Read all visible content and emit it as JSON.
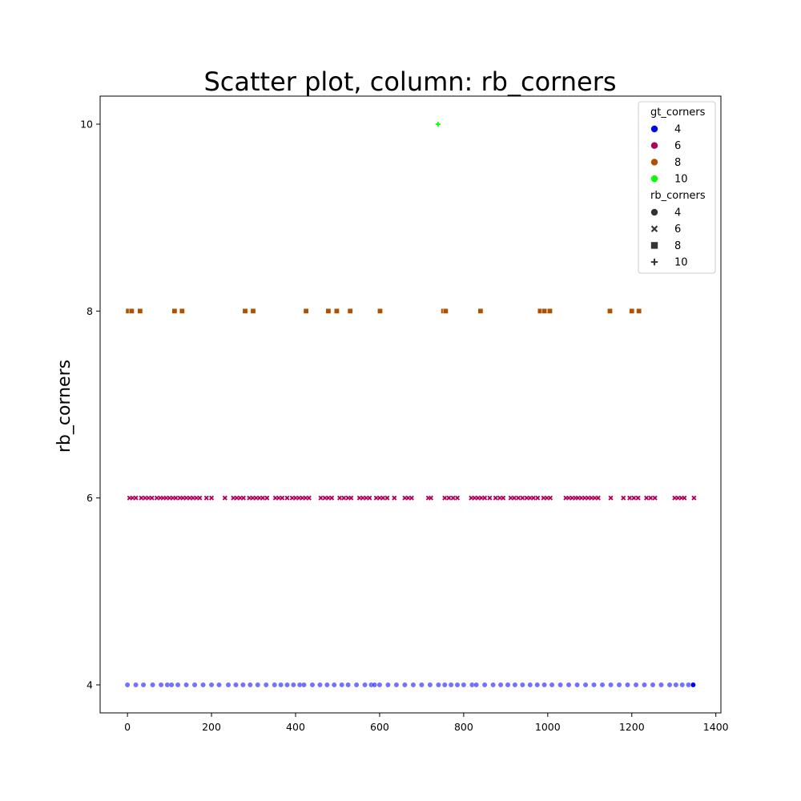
{
  "chart_data": {
    "type": "scatter",
    "title": "Scatter plot, column: rb_corners",
    "xlabel": "",
    "ylabel": "rb_corners",
    "xlim": [
      -65,
      1412
    ],
    "ylim": [
      3.7,
      10.3
    ],
    "xticks": [
      0,
      200,
      400,
      600,
      800,
      1000,
      1200,
      1400
    ],
    "yticks": [
      4,
      6,
      8,
      10
    ],
    "grid": false,
    "legend_position": "top-right",
    "legend": {
      "hue_title": "gt_corners",
      "hue_entries": [
        {
          "label": "4",
          "color": "#0000ff"
        },
        {
          "label": "6",
          "color": "#b0005a"
        },
        {
          "label": "8",
          "color": "#b05000"
        },
        {
          "label": "10",
          "color": "#00ff00"
        }
      ],
      "style_title": "rb_corners",
      "style_entries": [
        {
          "label": "4",
          "marker": "circle"
        },
        {
          "label": "6",
          "marker": "x"
        },
        {
          "label": "8",
          "marker": "square"
        },
        {
          "label": "10",
          "marker": "plus"
        }
      ]
    },
    "series": [
      {
        "gt": 8,
        "marker": "square",
        "color": "#b05000",
        "y": 8,
        "x": [
          2,
          10,
          30,
          112,
          130,
          280,
          299,
          425,
          478,
          498,
          530,
          601,
          752,
          757,
          840,
          982,
          992,
          1005,
          1148,
          1200,
          1217
        ]
      },
      {
        "gt": 10,
        "marker": "plus",
        "color": "#00ff00",
        "y": 10,
        "x": [
          739
        ]
      },
      {
        "gt": 6,
        "marker": "x",
        "color": "#b0005a",
        "y": 6,
        "x": [
          5,
          12,
          20,
          33,
          42,
          50,
          58,
          70,
          78,
          85,
          92,
          100,
          108,
          115,
          125,
          132,
          140,
          148,
          156,
          164,
          172,
          188,
          200,
          232,
          252,
          260,
          268,
          276,
          290,
          298,
          306,
          314,
          322,
          332,
          352,
          360,
          368,
          380,
          392,
          400,
          408,
          416,
          424,
          432,
          460,
          470,
          478,
          486,
          505,
          515,
          525,
          532,
          552,
          560,
          568,
          576,
          592,
          600,
          608,
          618,
          635,
          660,
          668,
          676,
          716,
          722,
          755,
          765,
          775,
          785,
          818,
          826,
          834,
          842,
          850,
          862,
          876,
          886,
          894,
          912,
          920,
          930,
          940,
          950,
          958,
          966,
          976,
          990,
          998,
          1006,
          1043,
          1050,
          1058,
          1066,
          1072,
          1080,
          1088,
          1096,
          1104,
          1112,
          1120,
          1150,
          1180,
          1195,
          1205,
          1215,
          1235,
          1245,
          1255,
          1302,
          1310,
          1318,
          1325,
          1348
        ]
      },
      {
        "gt": 4,
        "marker": "circle",
        "color": "#0000ff",
        "y": 4,
        "x": [
          0,
          20,
          38,
          60,
          80,
          95,
          105,
          120,
          140,
          160,
          180,
          200,
          218,
          240,
          258,
          275,
          292,
          310,
          330,
          350,
          365,
          380,
          395,
          410,
          420,
          440,
          458,
          475,
          492,
          510,
          525,
          545,
          565,
          580,
          588,
          600,
          620,
          640,
          660,
          680,
          700,
          720,
          740,
          755,
          770,
          785,
          800,
          820,
          830,
          850,
          870,
          888,
          905,
          922,
          940,
          958,
          975,
          992,
          1010,
          1030,
          1050,
          1070,
          1090,
          1110,
          1130,
          1150,
          1170,
          1190,
          1210,
          1230,
          1250,
          1270,
          1290,
          1305,
          1320,
          1335,
          1346
        ]
      }
    ]
  }
}
